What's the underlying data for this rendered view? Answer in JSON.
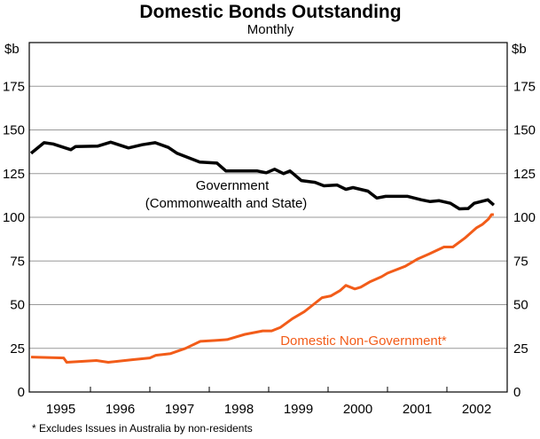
{
  "chart_data": {
    "type": "line",
    "title": "Domestic Bonds Outstanding",
    "subtitle": "Monthly",
    "ylabel_left": "$b",
    "ylabel_right": "$b",
    "ylim": [
      0,
      200
    ],
    "yticks": [
      0,
      25,
      50,
      75,
      100,
      125,
      150,
      175
    ],
    "xlim": [
      1995.0,
      2003.0
    ],
    "xtick_labels": [
      "1995",
      "1996",
      "1997",
      "1998",
      "1999",
      "2000",
      "2001",
      "2002"
    ],
    "grid": true,
    "footnote": "*   Excludes Issues in Australia by non-residents",
    "series": [
      {
        "name": "Government",
        "label_lines": [
          "Government",
          "(Commonwealth and State)"
        ],
        "color": "#000000",
        "x": [
          1995.0,
          1995.22,
          1995.37,
          1995.67,
          1995.75,
          1996.12,
          1996.34,
          1996.64,
          1996.87,
          1997.09,
          1997.31,
          1997.46,
          1997.84,
          1998.13,
          1998.28,
          1998.81,
          1998.96,
          1999.1,
          1999.25,
          1999.36,
          1999.55,
          1999.78,
          1999.93,
          2000.15,
          2000.3,
          2000.42,
          2000.67,
          2000.82,
          2000.97,
          2001.34,
          2001.57,
          2001.72,
          2001.87,
          2002.06,
          2002.21,
          2002.36,
          2002.46,
          2002.69,
          2002.79
        ],
        "y": [
          136.6,
          142.7,
          142,
          138.7,
          140.5,
          140.7,
          143,
          139.7,
          141.5,
          142.7,
          140,
          136.6,
          131.6,
          131,
          126.5,
          126.5,
          125.5,
          127.5,
          125,
          126.5,
          121,
          120,
          118,
          118.5,
          116,
          117,
          115,
          111,
          112,
          112,
          110,
          109,
          109.5,
          108,
          104.8,
          105,
          108,
          110,
          107
        ]
      },
      {
        "name": "Domestic Non-Government*",
        "label_lines": [
          "Domestic Non-Government*"
        ],
        "color": "#F25C19",
        "x": [
          1995.0,
          1995.55,
          1995.6,
          1996.1,
          1996.3,
          1996.7,
          1997.0,
          1997.1,
          1997.35,
          1997.6,
          1997.85,
          1998.1,
          1998.3,
          1998.6,
          1998.9,
          1999.05,
          1999.2,
          1999.4,
          1999.6,
          1999.75,
          1999.9,
          2000.05,
          2000.2,
          2000.3,
          2000.45,
          2000.55,
          2000.7,
          2000.9,
          2001.0,
          2001.3,
          2001.5,
          2001.7,
          2001.95,
          2002.1,
          2002.3,
          2002.5,
          2002.6,
          2002.7,
          2002.75,
          2002.79
        ],
        "y": [
          20,
          19.5,
          17,
          18,
          17,
          18.5,
          19.5,
          21,
          22,
          25,
          29,
          29.5,
          30,
          33,
          35,
          35,
          37,
          42,
          46,
          50,
          54,
          55,
          58,
          61,
          59,
          60,
          63,
          66,
          68,
          72,
          76,
          79,
          83,
          83,
          88,
          94,
          96,
          99,
          101.5,
          101.5
        ]
      }
    ]
  }
}
